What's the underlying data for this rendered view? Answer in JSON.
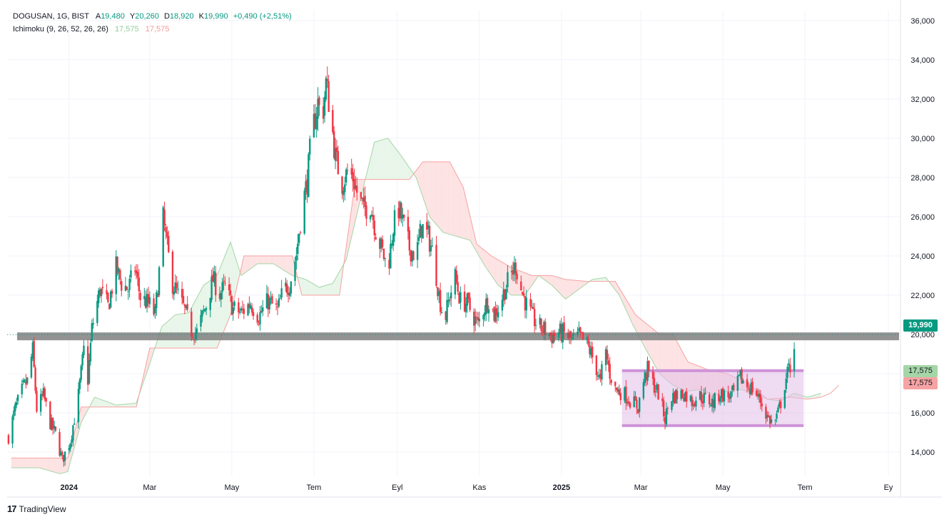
{
  "header": {
    "symbol": "DOGUSAN, 1G, BIST",
    "open_label": "A",
    "open_value": "19,480",
    "high_label": "Y",
    "high_value": "20,260",
    "low_label": "D",
    "low_value": "18,920",
    "close_label": "K",
    "close_value": "19,990",
    "change": "+0,490 (+2,51%)",
    "indicator_label": "Ichimoku (9, 26, 52, 26, 26)",
    "indicator_value_1": "17,575",
    "indicator_value_2": "17,575"
  },
  "price_tags": {
    "current": "19,990",
    "line_1": "17,575",
    "line_2": "17,575"
  },
  "footer": {
    "brand": "TradingView"
  },
  "colors": {
    "up": "#089981",
    "down": "#f23645",
    "cloud_bull": "#e8f5e9",
    "cloud_bear": "#fde2e2",
    "span_a": "#a5d6a7",
    "span_b": "#f7a1a1",
    "support_band": "#808080",
    "range_box": "#e1bee7",
    "range_border": "#ce93d8"
  },
  "chart_data": {
    "type": "candlestick",
    "symbol": "DOGUSAN",
    "interval": "1G",
    "y_axis": {
      "ticks": [
        14000,
        16000,
        18000,
        20000,
        22000,
        24000,
        26000,
        28000,
        30000,
        32000,
        34000,
        36000
      ],
      "tick_labels": [
        "14,000",
        "16,000",
        "18,000",
        "20,000",
        "22,000",
        "24,000",
        "26,000",
        "28,000",
        "30,000",
        "32,000",
        "34,000",
        "36,000"
      ],
      "ylim": [
        12800,
        36500
      ]
    },
    "x_axis": {
      "tick_labels": [
        "2024",
        "Mar",
        "May",
        "Tem",
        "Eyl",
        "Kas",
        "2025",
        "Mar",
        "May",
        "Tem",
        "Ey"
      ],
      "tick_dates": [
        "2024-01-01",
        "2024-03-01",
        "2024-05-01",
        "2024-07-01",
        "2024-09-01",
        "2024-11-01",
        "2025-01-01",
        "2025-03-01",
        "2025-05-01",
        "2025-07-01",
        "2025-09-01"
      ],
      "xlim": [
        "2023-11-16",
        "2025-09-10"
      ]
    },
    "price_path": [
      [
        "2023-11-17",
        14800
      ],
      [
        "2023-11-22",
        16200
      ],
      [
        "2023-11-28",
        17300
      ],
      [
        "2023-12-01",
        17600
      ],
      [
        "2023-12-05",
        19200
      ],
      [
        "2023-12-08",
        16200
      ],
      [
        "2023-12-13",
        16900
      ],
      [
        "2023-12-18",
        15500
      ],
      [
        "2023-12-22",
        14900
      ],
      [
        "2023-12-27",
        13600
      ],
      [
        "2024-01-02",
        14600
      ],
      [
        "2024-01-08",
        16900
      ],
      [
        "2024-01-12",
        19200
      ],
      [
        "2024-01-15",
        17700
      ],
      [
        "2024-01-18",
        20300
      ],
      [
        "2024-01-24",
        22300
      ],
      [
        "2024-01-30",
        21400
      ],
      [
        "2024-02-05",
        23400
      ],
      [
        "2024-02-09",
        22600
      ],
      [
        "2024-02-14",
        22300
      ],
      [
        "2024-02-19",
        23400
      ],
      [
        "2024-02-23",
        21900
      ],
      [
        "2024-03-01",
        21500
      ],
      [
        "2024-03-05",
        21000
      ],
      [
        "2024-03-08",
        23200
      ],
      [
        "2024-03-11",
        25900
      ],
      [
        "2024-03-14",
        24400
      ],
      [
        "2024-03-18",
        22600
      ],
      [
        "2024-03-22",
        22000
      ],
      [
        "2024-03-27",
        21200
      ],
      [
        "2024-04-01",
        20200
      ],
      [
        "2024-04-05",
        20100
      ],
      [
        "2024-04-12",
        21500
      ],
      [
        "2024-04-17",
        22800
      ],
      [
        "2024-04-22",
        22100
      ],
      [
        "2024-04-26",
        22400
      ],
      [
        "2024-05-02",
        21300
      ],
      [
        "2024-05-08",
        21100
      ],
      [
        "2024-05-15",
        21600
      ],
      [
        "2024-05-21",
        20900
      ],
      [
        "2024-05-28",
        21700
      ],
      [
        "2024-06-04",
        21200
      ],
      [
        "2024-06-08",
        22200
      ],
      [
        "2024-06-13",
        22600
      ],
      [
        "2024-06-18",
        24100
      ],
      [
        "2024-06-22",
        26400
      ],
      [
        "2024-06-26",
        27800
      ],
      [
        "2024-06-29",
        30000
      ],
      [
        "2024-07-04",
        31800
      ],
      [
        "2024-07-07",
        30900
      ],
      [
        "2024-07-10",
        32800
      ],
      [
        "2024-07-13",
        31500
      ],
      [
        "2024-07-17",
        29000
      ],
      [
        "2024-07-22",
        27700
      ],
      [
        "2024-07-26",
        28300
      ],
      [
        "2024-07-30",
        28000
      ],
      [
        "2024-08-03",
        27000
      ],
      [
        "2024-08-07",
        26400
      ],
      [
        "2024-08-12",
        26600
      ],
      [
        "2024-08-16",
        25300
      ],
      [
        "2024-08-21",
        24200
      ],
      [
        "2024-08-25",
        23300
      ],
      [
        "2024-08-29",
        25500
      ],
      [
        "2024-09-02",
        26400
      ],
      [
        "2024-09-06",
        25500
      ],
      [
        "2024-09-10",
        24400
      ],
      [
        "2024-09-15",
        24000
      ],
      [
        "2024-09-19",
        25500
      ],
      [
        "2024-09-24",
        25000
      ],
      [
        "2024-09-28",
        24000
      ],
      [
        "2024-10-02",
        22000
      ],
      [
        "2024-10-06",
        20600
      ],
      [
        "2024-10-10",
        22000
      ],
      [
        "2024-10-14",
        22900
      ],
      [
        "2024-10-18",
        21700
      ],
      [
        "2024-10-23",
        21600
      ],
      [
        "2024-10-27",
        21000
      ],
      [
        "2024-10-31",
        20500
      ],
      [
        "2024-11-04",
        21300
      ],
      [
        "2024-11-08",
        21800
      ],
      [
        "2024-11-12",
        21000
      ],
      [
        "2024-11-16",
        21500
      ],
      [
        "2024-11-20",
        22300
      ],
      [
        "2024-11-24",
        23000
      ],
      [
        "2024-11-28",
        23500
      ],
      [
        "2024-12-02",
        22300
      ],
      [
        "2024-12-06",
        21500
      ],
      [
        "2024-12-10",
        20900
      ],
      [
        "2024-12-15",
        20400
      ],
      [
        "2024-12-20",
        20200
      ],
      [
        "2024-12-25",
        19900
      ],
      [
        "2024-12-30",
        20100
      ],
      [
        "2025-01-04",
        20000
      ],
      [
        "2025-01-09",
        19700
      ],
      [
        "2025-01-14",
        19900
      ],
      [
        "2025-01-20",
        19500
      ],
      [
        "2025-01-26",
        18500
      ],
      [
        "2025-01-30",
        17500
      ],
      [
        "2025-02-02",
        19400
      ],
      [
        "2025-02-06",
        18000
      ],
      [
        "2025-02-10",
        17200
      ],
      [
        "2025-02-16",
        17000
      ],
      [
        "2025-02-22",
        16600
      ],
      [
        "2025-02-27",
        16300
      ],
      [
        "2025-03-02",
        17400
      ],
      [
        "2025-03-06",
        18200
      ],
      [
        "2025-03-10",
        17500
      ],
      [
        "2025-03-14",
        17000
      ],
      [
        "2025-03-19",
        15700
      ],
      [
        "2025-03-23",
        16800
      ],
      [
        "2025-03-27",
        16900
      ],
      [
        "2025-04-02",
        17000
      ],
      [
        "2025-04-08",
        16600
      ],
      [
        "2025-04-13",
        16900
      ],
      [
        "2025-04-18",
        16700
      ],
      [
        "2025-04-24",
        16500
      ],
      [
        "2025-04-29",
        17000
      ],
      [
        "2025-05-04",
        16800
      ],
      [
        "2025-05-09",
        17000
      ],
      [
        "2025-05-14",
        17800
      ],
      [
        "2025-05-19",
        17400
      ],
      [
        "2025-05-24",
        17200
      ],
      [
        "2025-05-29",
        16600
      ],
      [
        "2025-06-03",
        15800
      ],
      [
        "2025-06-08",
        15400
      ],
      [
        "2025-06-11",
        16000
      ],
      [
        "2025-06-14",
        16800
      ],
      [
        "2025-06-17",
        17800
      ],
      [
        "2025-06-21",
        18600
      ],
      [
        "2025-06-24",
        19990
      ]
    ],
    "ichimoku_span_a": [
      [
        "2023-11-19",
        13200
      ],
      [
        "2023-12-10",
        13200
      ],
      [
        "2023-12-25",
        12900
      ],
      [
        "2023-12-31",
        13000
      ],
      [
        "2024-01-10",
        15500
      ],
      [
        "2024-01-20",
        16800
      ],
      [
        "2024-02-05",
        16400
      ],
      [
        "2024-02-20",
        16500
      ],
      [
        "2024-03-01",
        18500
      ],
      [
        "2024-03-10",
        20400
      ],
      [
        "2024-03-20",
        21000
      ],
      [
        "2024-03-30",
        21100
      ],
      [
        "2024-04-10",
        22500
      ],
      [
        "2024-04-20",
        23000
      ],
      [
        "2024-04-30",
        24700
      ],
      [
        "2024-05-08",
        23000
      ],
      [
        "2024-05-20",
        23600
      ],
      [
        "2024-06-01",
        23600
      ],
      [
        "2024-06-15",
        23000
      ],
      [
        "2024-06-25",
        22800
      ],
      [
        "2024-07-05",
        22400
      ],
      [
        "2024-07-15",
        22600
      ],
      [
        "2024-07-25",
        23800
      ],
      [
        "2024-08-05",
        27000
      ],
      [
        "2024-08-15",
        29800
      ],
      [
        "2024-08-25",
        30000
      ],
      [
        "2024-09-05",
        29000
      ],
      [
        "2024-09-15",
        28000
      ],
      [
        "2024-09-25",
        26000
      ],
      [
        "2024-10-05",
        25200
      ],
      [
        "2024-10-15",
        25000
      ],
      [
        "2024-10-25",
        24800
      ],
      [
        "2024-11-05",
        23500
      ],
      [
        "2024-11-15",
        22500
      ],
      [
        "2024-11-25",
        22000
      ],
      [
        "2024-12-05",
        22000
      ],
      [
        "2024-12-15",
        23000
      ],
      [
        "2024-12-25",
        22500
      ],
      [
        "2025-01-04",
        21800
      ],
      [
        "2025-01-14",
        22300
      ],
      [
        "2025-01-24",
        22800
      ],
      [
        "2025-02-03",
        22900
      ],
      [
        "2025-02-13",
        22000
      ],
      [
        "2025-02-23",
        20500
      ],
      [
        "2025-03-05",
        19200
      ],
      [
        "2025-03-15",
        18000
      ],
      [
        "2025-03-25",
        17400
      ],
      [
        "2025-04-04",
        17100
      ],
      [
        "2025-04-14",
        17200
      ],
      [
        "2025-04-24",
        16900
      ],
      [
        "2025-05-04",
        17100
      ],
      [
        "2025-05-14",
        17200
      ],
      [
        "2025-05-24",
        17000
      ],
      [
        "2025-06-03",
        16700
      ],
      [
        "2025-06-13",
        16600
      ],
      [
        "2025-06-23",
        17000
      ],
      [
        "2025-07-03",
        16800
      ],
      [
        "2025-07-13",
        17000
      ]
    ],
    "ichimoku_span_b": [
      [
        "2023-11-19",
        13700
      ],
      [
        "2023-12-10",
        13700
      ],
      [
        "2023-12-31",
        13700
      ],
      [
        "2024-01-10",
        16300
      ],
      [
        "2024-02-05",
        16300
      ],
      [
        "2024-02-20",
        16300
      ],
      [
        "2024-03-01",
        19300
      ],
      [
        "2024-03-20",
        19300
      ],
      [
        "2024-04-05",
        19300
      ],
      [
        "2024-04-20",
        19300
      ],
      [
        "2024-04-30",
        21000
      ],
      [
        "2024-05-10",
        24000
      ],
      [
        "2024-05-25",
        24000
      ],
      [
        "2024-06-15",
        24000
      ],
      [
        "2024-06-22",
        22000
      ],
      [
        "2024-07-05",
        22000
      ],
      [
        "2024-07-20",
        22000
      ],
      [
        "2024-08-01",
        27900
      ],
      [
        "2024-08-20",
        27900
      ],
      [
        "2024-09-10",
        27900
      ],
      [
        "2024-09-20",
        28800
      ],
      [
        "2024-10-10",
        28800
      ],
      [
        "2024-10-20",
        27500
      ],
      [
        "2024-10-30",
        24600
      ],
      [
        "2024-11-10",
        24000
      ],
      [
        "2024-11-25",
        23400
      ],
      [
        "2024-12-10",
        23000
      ],
      [
        "2024-12-25",
        23000
      ],
      [
        "2025-01-04",
        22800
      ],
      [
        "2025-01-20",
        22700
      ],
      [
        "2025-01-31",
        22700
      ],
      [
        "2025-02-10",
        22700
      ],
      [
        "2025-02-25",
        21000
      ],
      [
        "2025-03-15",
        20000
      ],
      [
        "2025-03-25",
        20000
      ],
      [
        "2025-04-05",
        18600
      ],
      [
        "2025-04-20",
        18200
      ],
      [
        "2025-05-04",
        18000
      ],
      [
        "2025-05-20",
        17500
      ],
      [
        "2025-06-03",
        16700
      ],
      [
        "2025-06-20",
        16800
      ],
      [
        "2025-07-03",
        16700
      ],
      [
        "2025-07-13",
        16800
      ]
    ],
    "ichimoku_lead_extension": [
      [
        "2025-07-13",
        16800
      ],
      [
        "2025-07-20",
        17000
      ],
      [
        "2025-07-26",
        17400
      ]
    ],
    "annotations": {
      "support_band": {
        "from": 19700,
        "to": 20100
      },
      "range_box": {
        "from_date": "2025-02-15",
        "to_date": "2025-06-30",
        "low": 15350,
        "high": 18150
      },
      "last_price_line": 19990
    },
    "legend": [
      "Ichimoku (9, 26, 52, 26, 26)"
    ]
  }
}
